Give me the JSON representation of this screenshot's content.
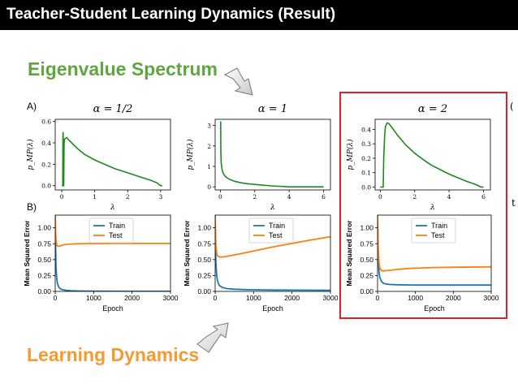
{
  "page": {
    "title": "Teacher-Student Learning Dynamics (Result)",
    "heading_top": "Eigenvalue Spectrum",
    "heading_bottom": "Learning Dynamics",
    "row_a_label": "A)",
    "row_b_label": "B)",
    "edge_mark_top": "(",
    "edge_mark_bottom": "t",
    "colors": {
      "title_bar": "#000000",
      "heading_top": "#5fa641",
      "heading_bottom": "#f39a30",
      "highlight": "#e02027",
      "spectrum": "#1d8a1d",
      "train": "#1f77b4",
      "test": "#ff7f0e"
    }
  },
  "chart_data": [
    {
      "type": "line",
      "title": "α = 1/2",
      "xlabel": "λ",
      "ylabel": "p_MP(λ)",
      "xlim": [
        -0.2,
        3.3
      ],
      "ylim": [
        -0.04,
        0.62
      ],
      "xticks": [
        "0",
        "1",
        "2",
        "3"
      ],
      "xtick_values": [
        0,
        1,
        2,
        3
      ],
      "yticks": [
        "0.0",
        "0.2",
        "0.4",
        "0.6"
      ],
      "ytick_values": [
        0,
        0.2,
        0.4,
        0.6
      ],
      "series": [
        {
          "x": [
            0,
            0.03,
            0.032,
            0.035,
            0.038,
            0.041,
            0.045,
            0.048,
            0.055,
            0.06,
            0.065,
            0.07,
            0.08,
            0.1,
            0.15,
            0.2,
            0.3,
            0.4,
            0.5,
            0.7,
            1.0,
            1.3,
            1.6,
            2.0,
            2.4,
            2.7,
            2.9,
            2.95,
            3.0,
            3.05
          ],
          "y": [
            0,
            0,
            0.3,
            0.45,
            0.5,
            0.48,
            0.3,
            0.05,
            0,
            0,
            0.3,
            0.4,
            0.43,
            0.44,
            0.45,
            0.43,
            0.4,
            0.37,
            0.34,
            0.29,
            0.24,
            0.2,
            0.16,
            0.12,
            0.08,
            0.05,
            0.025,
            0.01,
            0,
            0
          ]
        }
      ]
    },
    {
      "type": "line",
      "title": "α = 1",
      "xlabel": "λ",
      "ylabel": "p_MP(λ)",
      "xlim": [
        -0.3,
        6.4
      ],
      "ylim": [
        -0.15,
        3.3
      ],
      "xticks": [
        "0",
        "2",
        "4",
        "6"
      ],
      "xtick_values": [
        0,
        2,
        4,
        6
      ],
      "yticks": [
        "0",
        "1",
        "2",
        "3"
      ],
      "ytick_values": [
        0,
        1,
        2,
        3
      ],
      "series": [
        {
          "x": [
            0.02,
            0.03,
            0.05,
            0.08,
            0.12,
            0.2,
            0.3,
            0.5,
            0.8,
            1.2,
            1.6,
            2.0,
            2.5,
            3.0,
            3.4,
            3.7,
            3.9,
            4.0,
            6.0
          ],
          "y": [
            3.2,
            1.8,
            1.2,
            0.95,
            0.78,
            0.62,
            0.5,
            0.38,
            0.28,
            0.2,
            0.15,
            0.12,
            0.08,
            0.05,
            0.03,
            0.015,
            0.005,
            0,
            0
          ]
        }
      ]
    },
    {
      "type": "line",
      "title": "α = 2",
      "xlabel": "λ",
      "ylabel": "p_MP(λ)",
      "xlim": [
        -0.3,
        6.4
      ],
      "ylim": [
        -0.02,
        0.47
      ],
      "xticks": [
        "0",
        "2",
        "4",
        "6"
      ],
      "xtick_values": [
        0,
        2,
        4,
        6
      ],
      "yticks": [
        "0.0",
        "0.1",
        "0.2",
        "0.3",
        "0.4"
      ],
      "ytick_values": [
        0,
        0.1,
        0.2,
        0.3,
        0.4
      ],
      "series": [
        {
          "x": [
            0,
            0.17,
            0.2,
            0.25,
            0.3,
            0.4,
            0.5,
            0.7,
            1.0,
            1.5,
            2.0,
            2.5,
            3.0,
            3.5,
            4.0,
            4.5,
            5.0,
            5.5,
            5.7,
            5.83,
            5.9,
            6.0
          ],
          "y": [
            0,
            0,
            0.2,
            0.35,
            0.42,
            0.445,
            0.44,
            0.41,
            0.36,
            0.29,
            0.235,
            0.19,
            0.15,
            0.12,
            0.09,
            0.065,
            0.04,
            0.02,
            0.01,
            0,
            0,
            0
          ]
        }
      ]
    },
    {
      "type": "line",
      "title": "",
      "xlabel": "Epoch",
      "ylabel": "Mean Squared Error",
      "xlim": [
        0,
        3000
      ],
      "ylim": [
        0,
        1.2
      ],
      "xticks": [
        "0",
        "1000",
        "2000",
        "3000"
      ],
      "xtick_values": [
        0,
        1000,
        2000,
        3000
      ],
      "yticks": [
        "0.00",
        "0.25",
        "0.50",
        "0.75",
        "1.00"
      ],
      "ytick_values": [
        0,
        0.25,
        0.5,
        0.75,
        1
      ],
      "legend": "top-center",
      "series": [
        {
          "name": "Train",
          "x": [
            0,
            10,
            20,
            40,
            60,
            100,
            150,
            200,
            300,
            400,
            600,
            1000,
            2000,
            3000
          ],
          "y": [
            1.2,
            0.7,
            0.4,
            0.2,
            0.12,
            0.06,
            0.035,
            0.025,
            0.015,
            0.01,
            0.006,
            0.003,
            0.001,
            0.001
          ]
        },
        {
          "name": "Test",
          "x": [
            0,
            10,
            20,
            40,
            60,
            100,
            150,
            200,
            300,
            400,
            600,
            800,
            1000,
            2000,
            3000
          ],
          "y": [
            1.2,
            0.95,
            0.82,
            0.73,
            0.71,
            0.71,
            0.72,
            0.73,
            0.74,
            0.745,
            0.75,
            0.752,
            0.753,
            0.754,
            0.754
          ]
        }
      ]
    },
    {
      "type": "line",
      "title": "",
      "xlabel": "Epoch",
      "ylabel": "Mean Squared Error",
      "xlim": [
        0,
        3000
      ],
      "ylim": [
        0,
        1.2
      ],
      "xticks": [
        "0",
        "1000",
        "2000",
        "3000"
      ],
      "xtick_values": [
        0,
        1000,
        2000,
        3000
      ],
      "yticks": [
        "0.00",
        "0.25",
        "0.50",
        "0.75",
        "1.00"
      ],
      "ytick_values": [
        0,
        0.25,
        0.5,
        0.75,
        1
      ],
      "legend": "top-center",
      "series": [
        {
          "name": "Train",
          "x": [
            0,
            10,
            20,
            40,
            60,
            100,
            150,
            200,
            300,
            500,
            800,
            1000,
            1500,
            2000,
            3000
          ],
          "y": [
            1.2,
            0.7,
            0.45,
            0.25,
            0.17,
            0.1,
            0.075,
            0.06,
            0.045,
            0.035,
            0.028,
            0.025,
            0.022,
            0.02,
            0.018
          ]
        },
        {
          "name": "Test",
          "x": [
            0,
            10,
            20,
            40,
            60,
            100,
            150,
            200,
            300,
            500,
            800,
            1000,
            1500,
            2000,
            2500,
            3000
          ],
          "y": [
            1.2,
            0.9,
            0.72,
            0.6,
            0.56,
            0.545,
            0.54,
            0.543,
            0.55,
            0.575,
            0.61,
            0.635,
            0.7,
            0.755,
            0.81,
            0.86
          ]
        }
      ]
    },
    {
      "type": "line",
      "title": "",
      "xlabel": "Epoch",
      "ylabel": "Mean Squared Error",
      "xlim": [
        0,
        3000
      ],
      "ylim": [
        0,
        1.2
      ],
      "xticks": [
        "0",
        "1000",
        "2000",
        "3000"
      ],
      "xtick_values": [
        0,
        1000,
        2000,
        3000
      ],
      "yticks": [
        "0.00",
        "0.25",
        "0.50",
        "0.75",
        "1.00"
      ],
      "ytick_values": [
        0,
        0.25,
        0.5,
        0.75,
        1
      ],
      "legend": "top-center",
      "series": [
        {
          "name": "Train",
          "x": [
            0,
            10,
            20,
            40,
            60,
            100,
            150,
            200,
            300,
            500,
            1000,
            2000,
            3000
          ],
          "y": [
            1.2,
            0.75,
            0.5,
            0.3,
            0.22,
            0.16,
            0.13,
            0.12,
            0.11,
            0.105,
            0.1,
            0.1,
            0.1
          ]
        },
        {
          "name": "Test",
          "x": [
            0,
            10,
            20,
            40,
            60,
            100,
            150,
            200,
            300,
            500,
            800,
            1000,
            1500,
            2000,
            3000
          ],
          "y": [
            1.2,
            0.9,
            0.65,
            0.45,
            0.37,
            0.33,
            0.32,
            0.325,
            0.33,
            0.345,
            0.36,
            0.365,
            0.375,
            0.38,
            0.385
          ]
        }
      ]
    }
  ]
}
